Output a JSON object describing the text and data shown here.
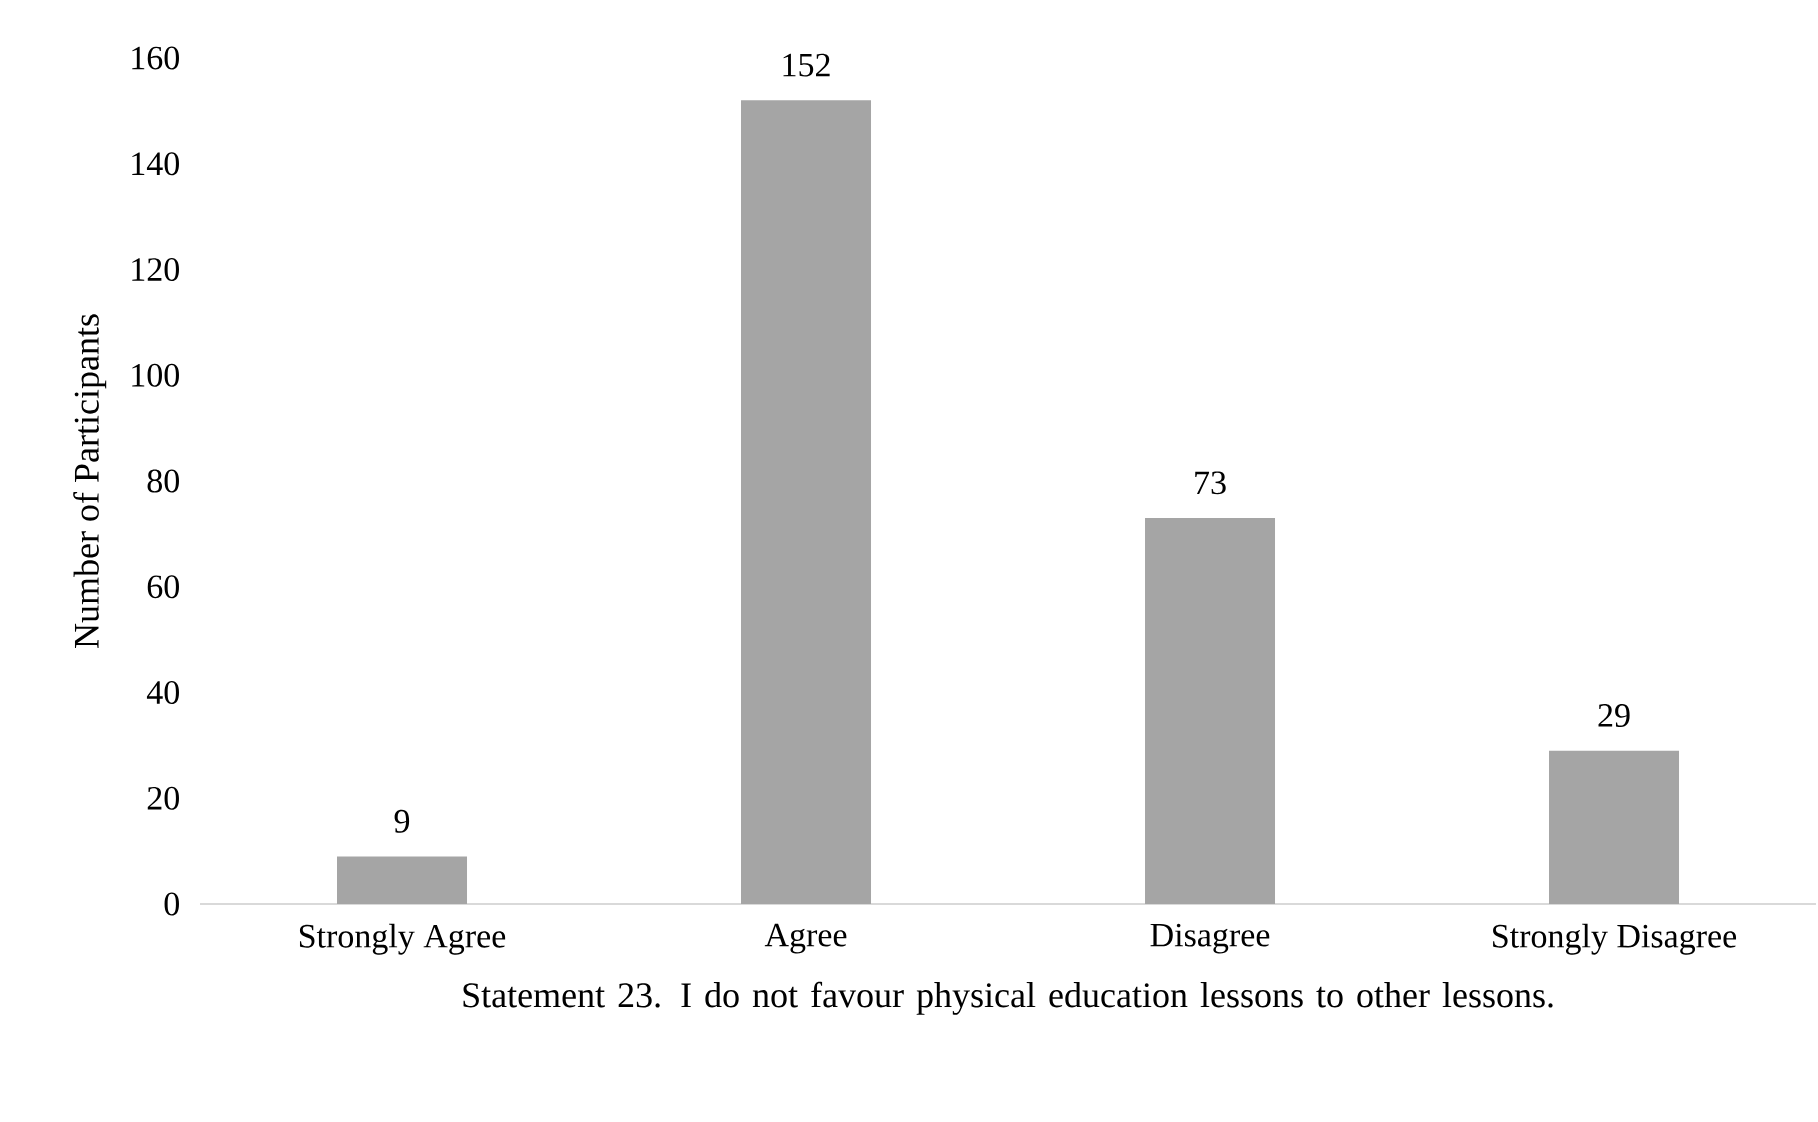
{
  "chart_data": {
    "type": "bar",
    "xlabel": "Statement 23. I do not favour physical education lessons to other lessons.",
    "ylabel": "Number of Participants",
    "categories": [
      "Strongly Agree",
      "Agree",
      "Disagree",
      "Strongly Disagree"
    ],
    "values": [
      9,
      152,
      73,
      29
    ],
    "color": "#a5a5a5",
    "ylim": [
      0,
      160
    ],
    "yticks": [
      0,
      20,
      40,
      60,
      80,
      100,
      120,
      140,
      160
    ],
    "grid": false,
    "data_labels": true
  }
}
